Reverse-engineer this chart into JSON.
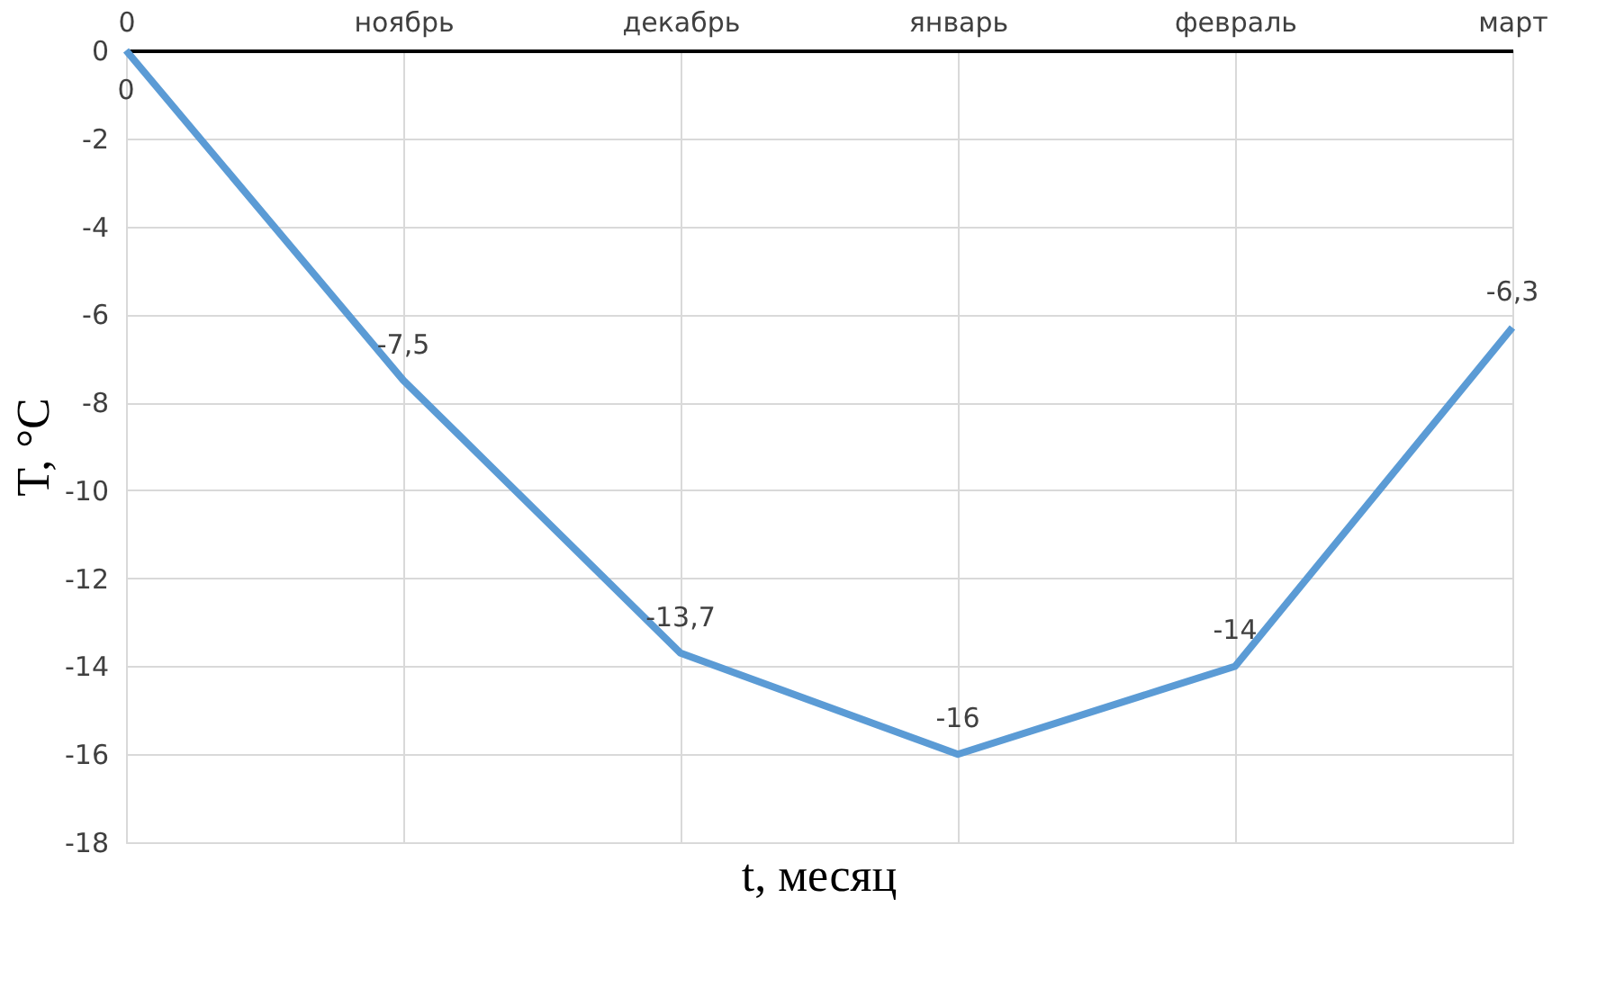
{
  "chart_data": {
    "type": "line",
    "xlabel": "t, месяц",
    "ylabel": "T, °C",
    "categories": [
      "0",
      "ноябрь",
      "декабрь",
      "январь",
      "февраль",
      "март"
    ],
    "series": [
      {
        "color": "#5b9bd5",
        "values": [
          0,
          -7.5,
          -13.7,
          -16,
          -14,
          -6.3
        ],
        "value_labels": [
          "0",
          "-7,5",
          "-13,7",
          "-16",
          "-14",
          "-6,3"
        ]
      }
    ],
    "ylim": [
      -18,
      0
    ],
    "yticks": [
      0,
      -2,
      -4,
      -6,
      -8,
      -10,
      -12,
      -14,
      -16,
      -18
    ],
    "grid": true,
    "marker": "none",
    "line_style": "solid"
  }
}
